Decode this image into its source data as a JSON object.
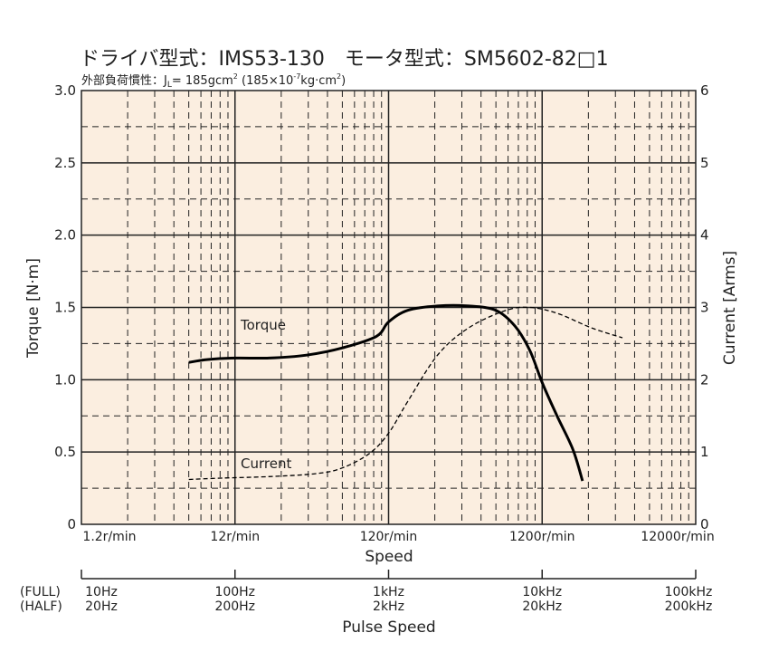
{
  "chart_data": {
    "type": "line",
    "title": "ドライバ型式：IMS53-130　モータ型式：SM5602-82□1",
    "subtitle_prefix": "外部負荷慣性：J",
    "subtitle_sub": "L",
    "subtitle_value": "= 185gcm",
    "subtitle_sup1": "2",
    "subtitle_mid": " (185×10",
    "subtitle_sup2": "-7",
    "subtitle_unit": "kg·cm",
    "subtitle_sup3": "2",
    "subtitle_close": ")",
    "xlabel": "Speed",
    "ylabel_left": "Torque  [N·m]",
    "ylabel_right": "Current  [Arms]",
    "x_scale": "log",
    "x_range": [
      1.2,
      12000
    ],
    "x_ticks": [
      1.2,
      12,
      120,
      1200,
      12000
    ],
    "x_tick_labels": [
      "1.2r/min",
      "12r/min",
      "120r/min",
      "1200r/min",
      "12000r/min"
    ],
    "y_left_range": [
      0,
      3.0
    ],
    "y_left_ticks": [
      0,
      0.5,
      1.0,
      1.5,
      2.0,
      2.5,
      3.0
    ],
    "y_left_tick_labels": [
      "0",
      "0.5",
      "1.0",
      "1.5",
      "2.0",
      "2.5",
      "3.0"
    ],
    "y_right_range": [
      0,
      6
    ],
    "y_right_ticks": [
      0,
      1,
      2,
      3,
      4,
      5,
      6
    ],
    "y_right_tick_labels": [
      "0",
      "1",
      "2",
      "3",
      "4",
      "5",
      "6"
    ],
    "grid": true,
    "background_color": "#fbeee0",
    "line_color": "#000000",
    "series": [
      {
        "name": "Torque",
        "axis": "left",
        "style": "solid",
        "x": [
          6,
          8,
          12,
          20,
          35,
          60,
          100,
          120,
          160,
          250,
          400,
          600,
          800,
          1000,
          1200,
          1500,
          1900,
          2200
        ],
        "values": [
          1.12,
          1.14,
          1.15,
          1.15,
          1.17,
          1.22,
          1.3,
          1.4,
          1.48,
          1.51,
          1.51,
          1.48,
          1.37,
          1.2,
          0.98,
          0.75,
          0.52,
          0.3
        ]
      },
      {
        "name": "Current",
        "axis": "right",
        "style": "dashed",
        "x": [
          6,
          10,
          20,
          40,
          60,
          90,
          120,
          160,
          250,
          400,
          700,
          1000,
          1500,
          2500,
          4000
        ],
        "values": [
          0.62,
          0.64,
          0.66,
          0.7,
          0.78,
          0.98,
          1.26,
          1.7,
          2.34,
          2.72,
          2.96,
          3.0,
          2.92,
          2.72,
          2.58
        ]
      }
    ],
    "pulse_axis": {
      "label": "Pulse Speed",
      "row_labels": [
        "(FULL)",
        "(HALF)"
      ],
      "full": [
        "10Hz",
        "100Hz",
        "1kHz",
        "10kHz",
        "100kHz"
      ],
      "half": [
        "20Hz",
        "200Hz",
        "2kHz",
        "20kHz",
        "200kHz"
      ]
    }
  }
}
